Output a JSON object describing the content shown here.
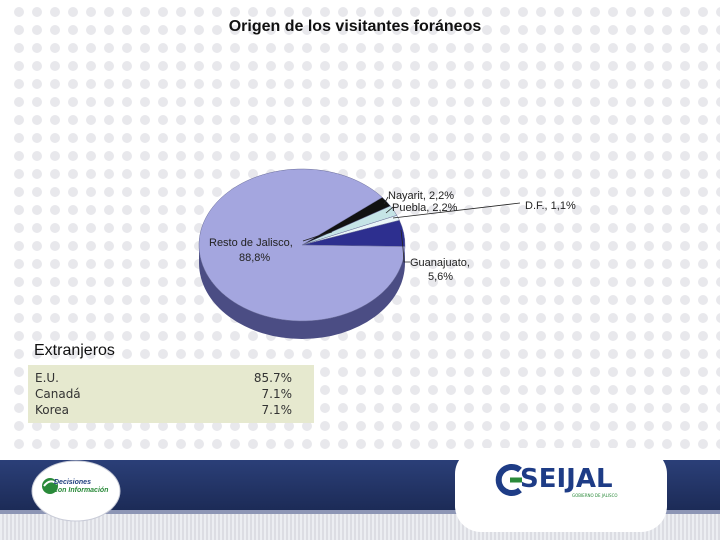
{
  "chart_data": {
    "type": "pie",
    "title": "Origen de los visitantes foráneos",
    "slices": [
      {
        "name": "Resto de Jalisco",
        "label": "Resto de Jalisco, 88,8%",
        "value": 88.8,
        "color": "#a4a6df"
      },
      {
        "name": "Guanajuato",
        "label_line1": "Guanajuato,",
        "label_line2": "5,6%",
        "value": 5.6,
        "color": "#2d2f8f"
      },
      {
        "name": "D.F.",
        "label": "D.F., 1,1%",
        "value": 1.1,
        "color": "#eaf6f8"
      },
      {
        "name": "Puebla",
        "label": "Puebla, 2,2%",
        "value": 2.2,
        "color": "#c5e4e6"
      },
      {
        "name": "Nayarit",
        "label": "Nayarit, 2,2%",
        "value": 2.2,
        "color": "#111111"
      }
    ],
    "resto_line1": "Resto de Jalisco,",
    "resto_line2": "88,8%"
  },
  "extranjeros": {
    "heading": "Extranjeros",
    "rows": [
      {
        "name": "E.U.",
        "value": "85.7%"
      },
      {
        "name": "Canadá",
        "value": "7.1%"
      },
      {
        "name": "Korea",
        "value": "7.1%"
      }
    ]
  },
  "footer": {
    "decisiones_line1": "Decisiones",
    "decisiones_line2": "con Información",
    "seijal_word": "SEIJAL",
    "seijal_sub": "GOBIERNO DE JALISCO"
  }
}
